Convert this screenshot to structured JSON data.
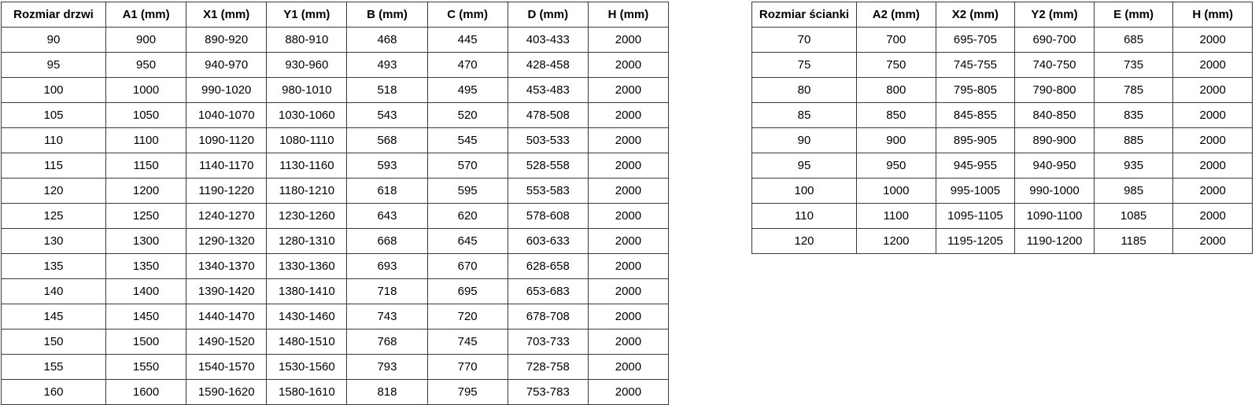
{
  "page": {
    "background_color": "#ffffff",
    "text_color": "#000000",
    "border_color": "#3a3a3a"
  },
  "door_table": {
    "headers": [
      "Rozmiar drzwi",
      "A1 (mm)",
      "X1 (mm)",
      "Y1 (mm)",
      "B (mm)",
      "C (mm)",
      "D (mm)",
      "H (mm)"
    ],
    "rows": [
      [
        "90",
        "900",
        "890-920",
        "880-910",
        "468",
        "445",
        "403-433",
        "2000"
      ],
      [
        "95",
        "950",
        "940-970",
        "930-960",
        "493",
        "470",
        "428-458",
        "2000"
      ],
      [
        "100",
        "1000",
        "990-1020",
        "980-1010",
        "518",
        "495",
        "453-483",
        "2000"
      ],
      [
        "105",
        "1050",
        "1040-1070",
        "1030-1060",
        "543",
        "520",
        "478-508",
        "2000"
      ],
      [
        "110",
        "1100",
        "1090-1120",
        "1080-1110",
        "568",
        "545",
        "503-533",
        "2000"
      ],
      [
        "115",
        "1150",
        "1140-1170",
        "1130-1160",
        "593",
        "570",
        "528-558",
        "2000"
      ],
      [
        "120",
        "1200",
        "1190-1220",
        "1180-1210",
        "618",
        "595",
        "553-583",
        "2000"
      ],
      [
        "125",
        "1250",
        "1240-1270",
        "1230-1260",
        "643",
        "620",
        "578-608",
        "2000"
      ],
      [
        "130",
        "1300",
        "1290-1320",
        "1280-1310",
        "668",
        "645",
        "603-633",
        "2000"
      ],
      [
        "135",
        "1350",
        "1340-1370",
        "1330-1360",
        "693",
        "670",
        "628-658",
        "2000"
      ],
      [
        "140",
        "1400",
        "1390-1420",
        "1380-1410",
        "718",
        "695",
        "653-683",
        "2000"
      ],
      [
        "145",
        "1450",
        "1440-1470",
        "1430-1460",
        "743",
        "720",
        "678-708",
        "2000"
      ],
      [
        "150",
        "1500",
        "1490-1520",
        "1480-1510",
        "768",
        "745",
        "703-733",
        "2000"
      ],
      [
        "155",
        "1550",
        "1540-1570",
        "1530-1560",
        "793",
        "770",
        "728-758",
        "2000"
      ],
      [
        "160",
        "1600",
        "1590-1620",
        "1580-1610",
        "818",
        "795",
        "753-783",
        "2000"
      ]
    ]
  },
  "wall_table": {
    "headers": [
      "Rozmiar ścianki",
      "A2 (mm)",
      "X2 (mm)",
      "Y2 (mm)",
      "E (mm)",
      "H (mm)"
    ],
    "rows": [
      [
        "70",
        "700",
        "695-705",
        "690-700",
        "685",
        "2000"
      ],
      [
        "75",
        "750",
        "745-755",
        "740-750",
        "735",
        "2000"
      ],
      [
        "80",
        "800",
        "795-805",
        "790-800",
        "785",
        "2000"
      ],
      [
        "85",
        "850",
        "845-855",
        "840-850",
        "835",
        "2000"
      ],
      [
        "90",
        "900",
        "895-905",
        "890-900",
        "885",
        "2000"
      ],
      [
        "95",
        "950",
        "945-955",
        "940-950",
        "935",
        "2000"
      ],
      [
        "100",
        "1000",
        "995-1005",
        "990-1000",
        "985",
        "2000"
      ],
      [
        "110",
        "1100",
        "1095-1105",
        "1090-1100",
        "1085",
        "2000"
      ],
      [
        "120",
        "1200",
        "1195-1205",
        "1190-1200",
        "1185",
        "2000"
      ]
    ]
  }
}
